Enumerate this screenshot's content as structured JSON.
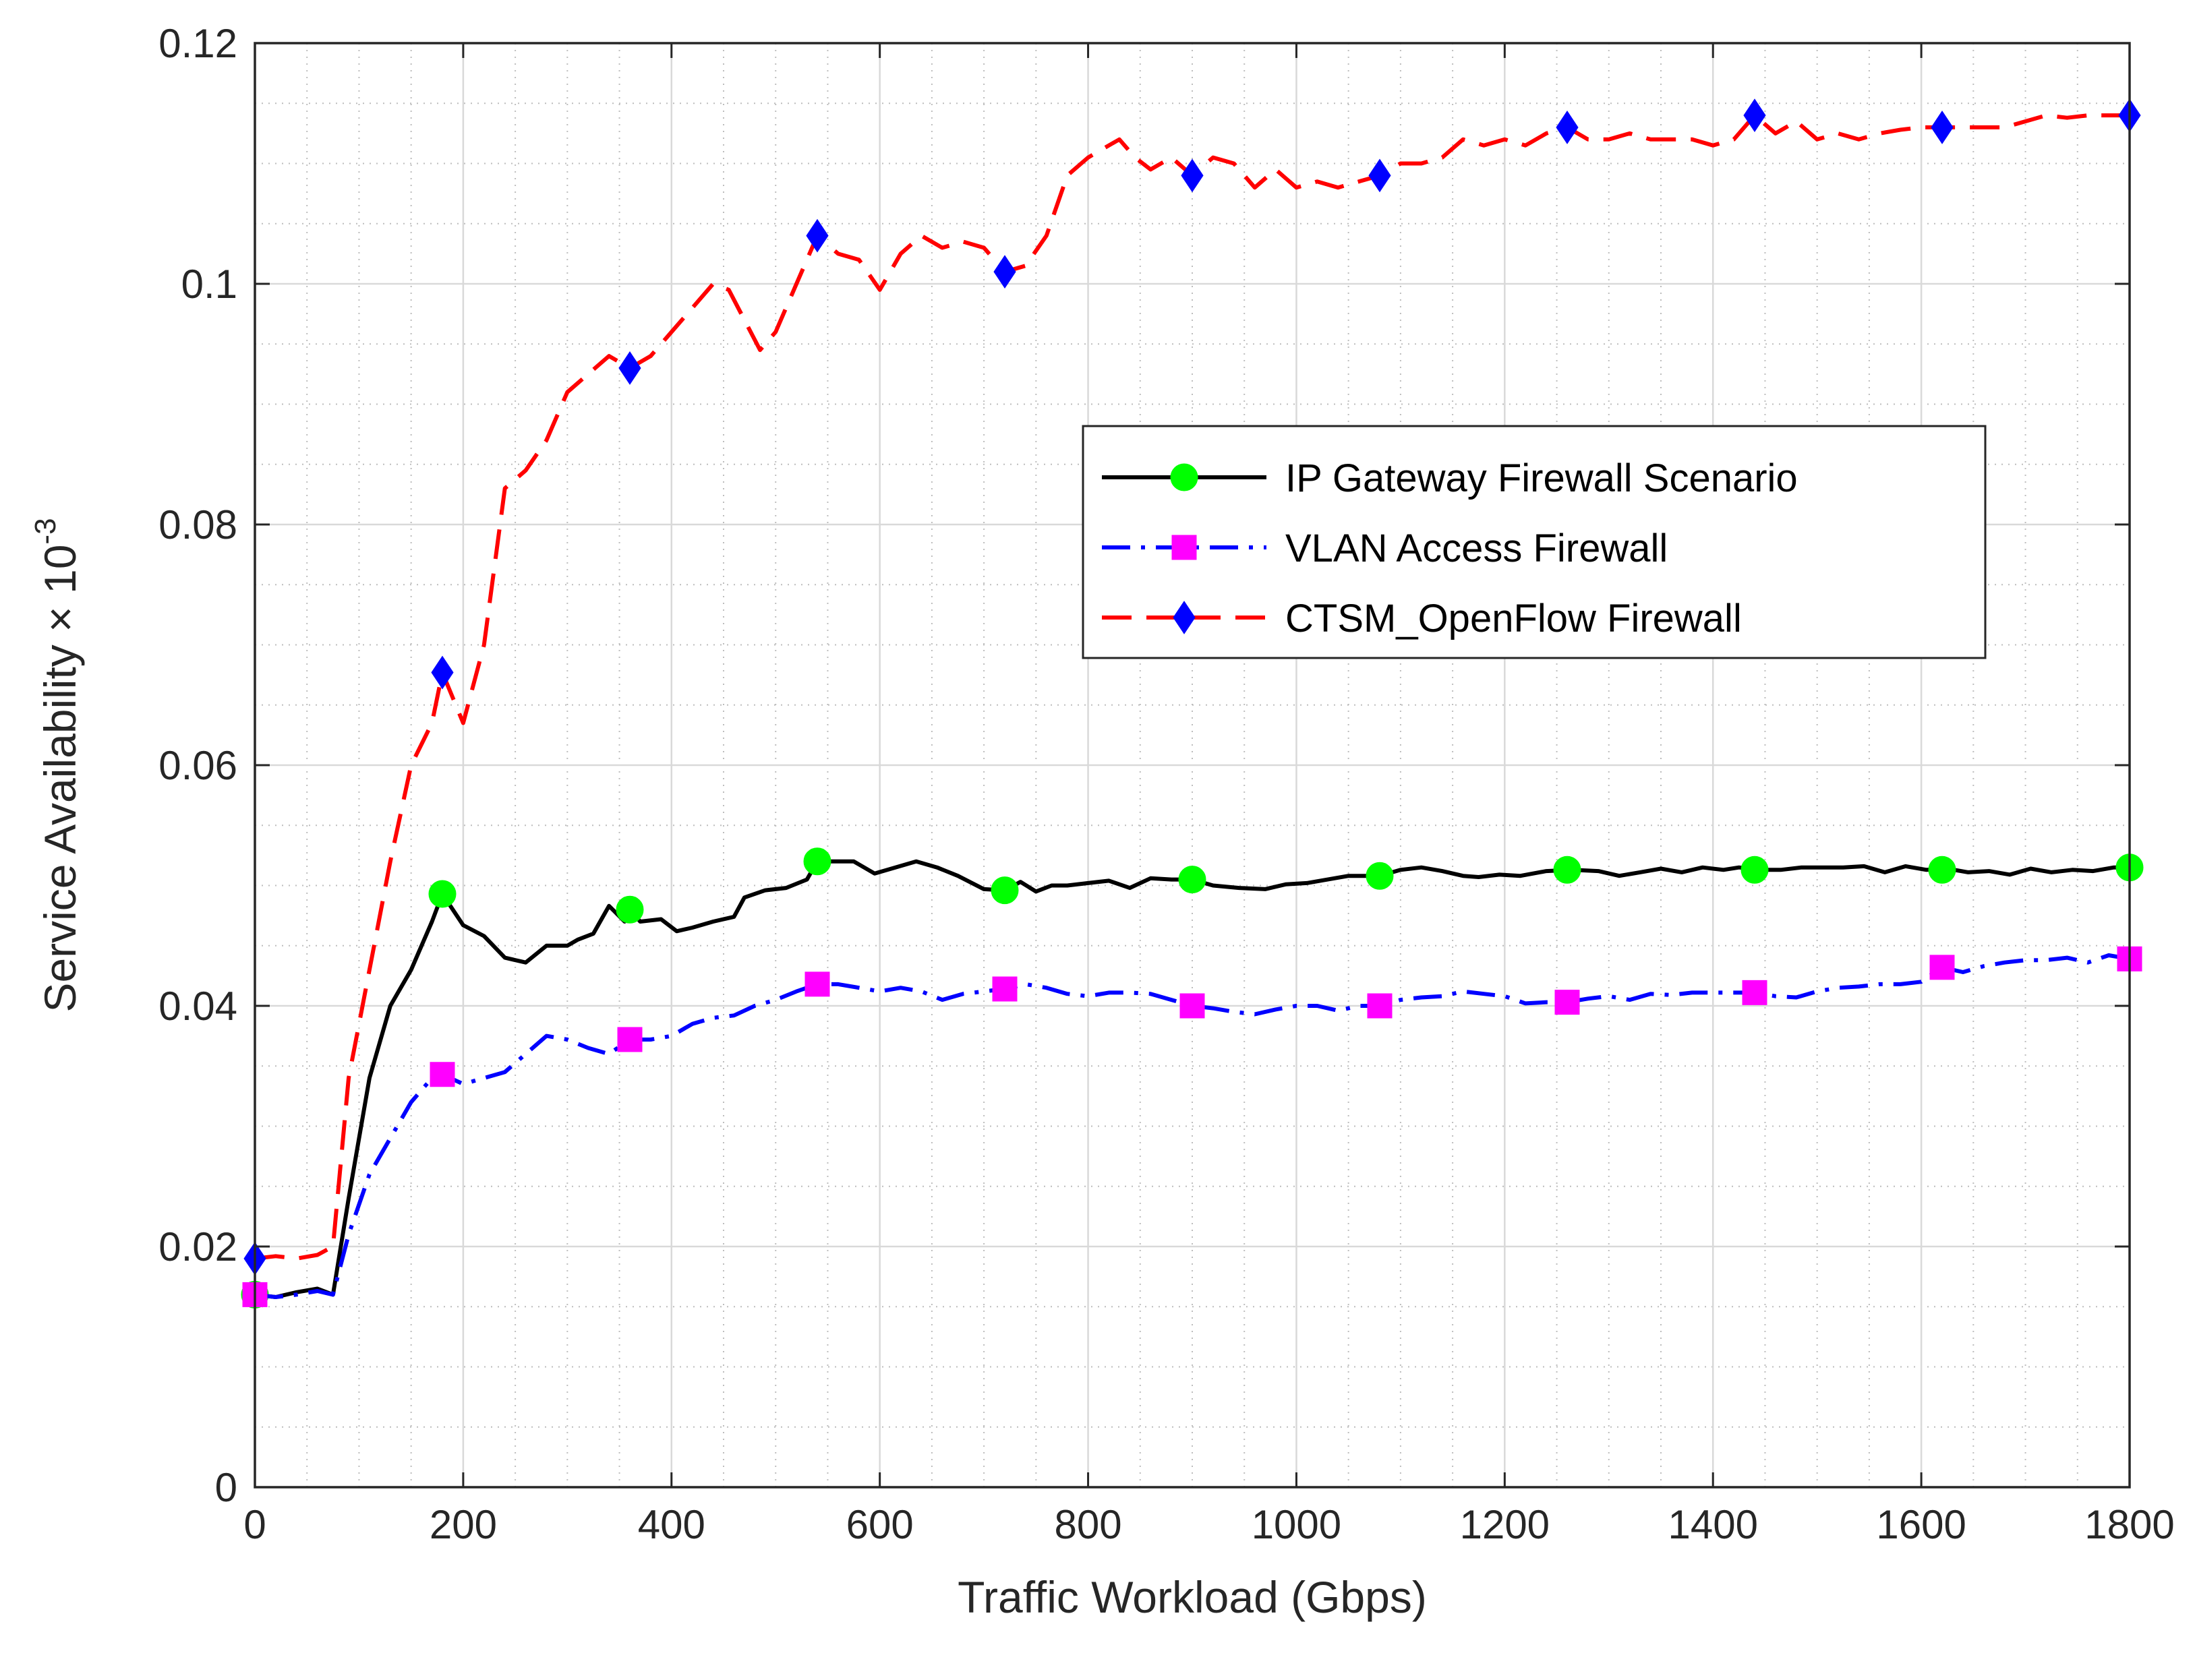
{
  "chart_data": {
    "type": "line",
    "xlabel": "Traffic Workload (Gbps)",
    "ylabel": "Service Availability × 10",
    "ylabel_exponent": "-3",
    "xlim": [
      0,
      1800
    ],
    "ylim": [
      0,
      0.12
    ],
    "xticks": [
      0,
      200,
      400,
      600,
      800,
      1000,
      1200,
      1400,
      1600,
      1800
    ],
    "yticks": [
      0,
      0.02,
      0.04,
      0.06,
      0.08,
      0.1,
      0.12
    ],
    "xtick_labels": [
      "0",
      "200",
      "400",
      "600",
      "800",
      "1000",
      "1200",
      "1400",
      "1600",
      "1800"
    ],
    "ytick_labels": [
      "0",
      "0.02",
      "0.04",
      "0.06",
      "0.08",
      "0.1",
      "0.12"
    ],
    "grid": true,
    "minor_grid": true,
    "legend_position": "upper-right-center",
    "series": [
      {
        "name": "IP Gateway Firewall Scenario",
        "color": "#000000",
        "marker": "circle",
        "marker_color": "#00ff00",
        "line_style": "solid",
        "x": [
          0,
          20,
          40,
          60,
          75,
          90,
          110,
          130,
          150,
          170,
          180,
          200,
          220,
          240,
          260,
          280,
          300,
          310,
          325,
          340,
          355,
          360,
          370,
          390,
          405,
          420,
          440,
          460,
          470,
          490,
          510,
          530,
          540,
          555,
          575,
          595,
          615,
          635,
          655,
          675,
          700,
          720,
          735,
          750,
          765,
          780,
          800,
          820,
          840,
          860,
          880,
          900,
          920,
          945,
          970,
          990,
          1010,
          1030,
          1050,
          1080,
          1100,
          1120,
          1140,
          1160,
          1175,
          1195,
          1215,
          1240,
          1265,
          1290,
          1310,
          1330,
          1350,
          1370,
          1390,
          1410,
          1425,
          1445,
          1465,
          1485,
          1505,
          1525,
          1545,
          1565,
          1585,
          1605,
          1625,
          1645,
          1665,
          1685,
          1705,
          1725,
          1745,
          1765,
          1785,
          1800
        ],
        "y": [
          0.016,
          0.0158,
          0.0162,
          0.0165,
          0.016,
          0.024,
          0.034,
          0.04,
          0.043,
          0.047,
          0.0493,
          0.0467,
          0.0458,
          0.044,
          0.0436,
          0.045,
          0.045,
          0.0455,
          0.046,
          0.0483,
          0.047,
          0.048,
          0.047,
          0.0472,
          0.0462,
          0.0465,
          0.047,
          0.0474,
          0.049,
          0.0496,
          0.0498,
          0.0505,
          0.052,
          0.052,
          0.052,
          0.051,
          0.0515,
          0.052,
          0.0515,
          0.0508,
          0.0497,
          0.0496,
          0.0503,
          0.0495,
          0.05,
          0.05,
          0.0502,
          0.0504,
          0.0498,
          0.0506,
          0.0505,
          0.0505,
          0.05,
          0.0498,
          0.0497,
          0.0501,
          0.0502,
          0.0505,
          0.0508,
          0.0508,
          0.0513,
          0.0515,
          0.0512,
          0.0508,
          0.0507,
          0.0509,
          0.0508,
          0.0512,
          0.0513,
          0.0512,
          0.0508,
          0.0511,
          0.0514,
          0.0511,
          0.0515,
          0.0513,
          0.0515,
          0.0513,
          0.0513,
          0.0515,
          0.0515,
          0.0515,
          0.0516,
          0.0511,
          0.0516,
          0.0513,
          0.0514,
          0.0511,
          0.0512,
          0.0509,
          0.0514,
          0.0511,
          0.0513,
          0.0512,
          0.0515,
          0.0515
        ],
        "marker_x": [
          0,
          180,
          360,
          540,
          720,
          900,
          1080,
          1260,
          1440,
          1620,
          1800
        ],
        "marker_y": [
          0.016,
          0.0493,
          0.048,
          0.052,
          0.0496,
          0.0505,
          0.0508,
          0.0513,
          0.0513,
          0.0513,
          0.0515
        ]
      },
      {
        "name": "VLAN Access Firewall",
        "color": "#0000ff",
        "marker": "square",
        "marker_color": "#ff00ff",
        "line_style": "dashdot",
        "x": [
          0,
          20,
          40,
          60,
          75,
          90,
          110,
          130,
          150,
          170,
          180,
          200,
          220,
          240,
          260,
          280,
          300,
          320,
          340,
          360,
          380,
          400,
          420,
          440,
          460,
          480,
          500,
          520,
          540,
          560,
          580,
          600,
          620,
          640,
          660,
          680,
          700,
          720,
          740,
          760,
          780,
          800,
          820,
          840,
          860,
          880,
          900,
          920,
          940,
          960,
          980,
          1000,
          1020,
          1040,
          1060,
          1080,
          1100,
          1120,
          1140,
          1160,
          1180,
          1200,
          1220,
          1240,
          1260,
          1280,
          1300,
          1320,
          1340,
          1360,
          1380,
          1400,
          1420,
          1440,
          1460,
          1480,
          1500,
          1520,
          1540,
          1560,
          1580,
          1600,
          1620,
          1640,
          1660,
          1680,
          1700,
          1720,
          1740,
          1760,
          1780,
          1800
        ],
        "y": [
          0.016,
          0.0158,
          0.016,
          0.0163,
          0.016,
          0.021,
          0.026,
          0.029,
          0.032,
          0.034,
          0.0343,
          0.0335,
          0.034,
          0.0345,
          0.036,
          0.0375,
          0.0372,
          0.0365,
          0.036,
          0.0372,
          0.0372,
          0.0375,
          0.0385,
          0.039,
          0.0392,
          0.04,
          0.0405,
          0.0412,
          0.0418,
          0.0418,
          0.0415,
          0.0412,
          0.0415,
          0.0412,
          0.0405,
          0.041,
          0.0412,
          0.0414,
          0.0418,
          0.0415,
          0.041,
          0.0408,
          0.0411,
          0.0411,
          0.041,
          0.0405,
          0.04,
          0.0398,
          0.0395,
          0.0393,
          0.0397,
          0.04,
          0.04,
          0.0396,
          0.04,
          0.04,
          0.0405,
          0.0407,
          0.0408,
          0.0412,
          0.041,
          0.0408,
          0.0402,
          0.0403,
          0.0403,
          0.0406,
          0.0408,
          0.0405,
          0.041,
          0.0409,
          0.0411,
          0.0411,
          0.0411,
          0.0411,
          0.0408,
          0.0407,
          0.0412,
          0.0415,
          0.0416,
          0.0418,
          0.0418,
          0.042,
          0.0432,
          0.0428,
          0.0433,
          0.0436,
          0.0438,
          0.0438,
          0.044,
          0.0436,
          0.0442,
          0.0439
        ],
        "marker_x": [
          0,
          180,
          360,
          540,
          720,
          900,
          1080,
          1260,
          1440,
          1620,
          1800
        ],
        "marker_y": [
          0.016,
          0.0343,
          0.0372,
          0.0418,
          0.0414,
          0.04,
          0.04,
          0.0403,
          0.0411,
          0.0432,
          0.0439
        ]
      },
      {
        "name": "CTSM_OpenFlow Firewall",
        "color": "#ff0000",
        "marker": "diamond",
        "marker_color": "#0000ff",
        "line_style": "dashed",
        "x": [
          0,
          20,
          40,
          60,
          75,
          90,
          110,
          130,
          150,
          170,
          180,
          200,
          220,
          240,
          260,
          280,
          300,
          320,
          340,
          360,
          380,
          400,
          420,
          440,
          455,
          470,
          485,
          500,
          520,
          540,
          560,
          580,
          600,
          620,
          640,
          660,
          680,
          700,
          720,
          740,
          760,
          780,
          800,
          820,
          830,
          845,
          860,
          880,
          900,
          920,
          940,
          960,
          980,
          1000,
          1020,
          1040,
          1060,
          1080,
          1100,
          1120,
          1140,
          1160,
          1180,
          1200,
          1220,
          1240,
          1260,
          1280,
          1300,
          1320,
          1340,
          1360,
          1380,
          1400,
          1420,
          1440,
          1460,
          1480,
          1500,
          1520,
          1540,
          1560,
          1580,
          1600,
          1620,
          1640,
          1660,
          1680,
          1700,
          1720,
          1740,
          1760,
          1780,
          1800
        ],
        "y": [
          0.019,
          0.0192,
          0.019,
          0.0193,
          0.02,
          0.034,
          0.043,
          0.052,
          0.06,
          0.0635,
          0.0677,
          0.0635,
          0.07,
          0.083,
          0.0845,
          0.087,
          0.091,
          0.0925,
          0.094,
          0.093,
          0.094,
          0.096,
          0.098,
          0.1,
          0.0995,
          0.097,
          0.0945,
          0.096,
          0.1,
          0.104,
          0.1025,
          0.102,
          0.0995,
          0.1025,
          0.104,
          0.103,
          0.1035,
          0.103,
          0.101,
          0.1015,
          0.104,
          0.109,
          0.1105,
          0.1115,
          0.112,
          0.1105,
          0.1095,
          0.1105,
          0.109,
          0.1105,
          0.11,
          0.108,
          0.1095,
          0.108,
          0.1085,
          0.108,
          0.1085,
          0.109,
          0.11,
          0.11,
          0.1105,
          0.112,
          0.1115,
          0.112,
          0.1115,
          0.1125,
          0.113,
          0.112,
          0.112,
          0.1125,
          0.112,
          0.112,
          0.112,
          0.1115,
          0.112,
          0.114,
          0.1125,
          0.1135,
          0.112,
          0.1125,
          0.112,
          0.1125,
          0.1128,
          0.113,
          0.113,
          0.113,
          0.113,
          0.113,
          0.1135,
          0.114,
          0.1138,
          0.114,
          0.114,
          0.114
        ],
        "marker_x": [
          0,
          180,
          360,
          540,
          720,
          900,
          1080,
          1260,
          1440,
          1620,
          1800
        ],
        "marker_y": [
          0.019,
          0.0677,
          0.093,
          0.104,
          0.101,
          0.109,
          0.109,
          0.113,
          0.114,
          0.113,
          0.114
        ]
      }
    ]
  }
}
